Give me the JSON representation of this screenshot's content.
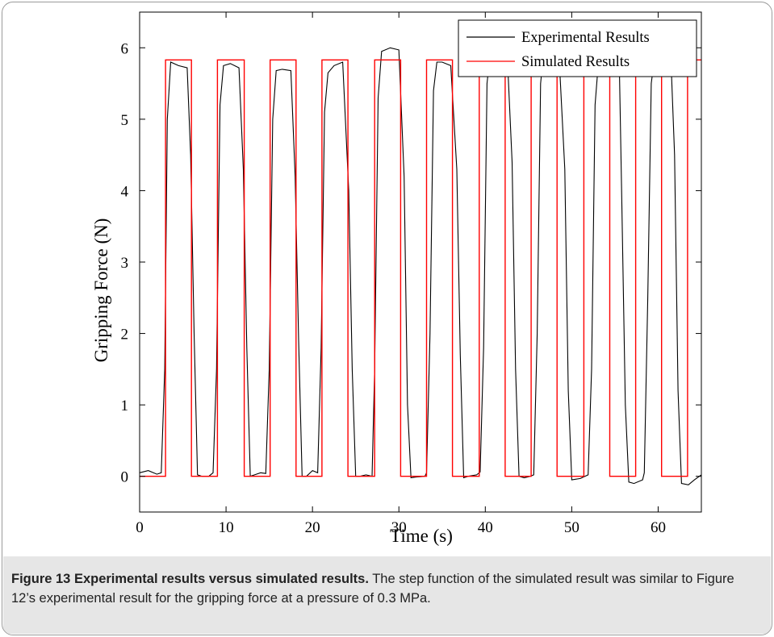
{
  "chart_data": {
    "type": "line",
    "xlabel": "Time (s)",
    "ylabel": "Gripping Force (N)",
    "xlim": [
      0,
      65
    ],
    "ylim": [
      -0.5,
      6.5
    ],
    "xticks": [
      0,
      10,
      20,
      30,
      40,
      50,
      60
    ],
    "yticks": [
      0,
      1,
      2,
      3,
      4,
      5,
      6
    ],
    "legend_position": "top-right",
    "series": [
      {
        "name": "Experimental Results",
        "color": "#000000",
        "x": [
          0,
          1,
          2,
          2.5,
          2.9,
          3.2,
          3.6,
          4.5,
          5.5,
          5.9,
          6.3,
          6.7,
          7.2,
          8,
          8.5,
          8.9,
          9.3,
          9.7,
          10.5,
          11.5,
          12,
          12.4,
          12.8,
          13.3,
          14,
          14.6,
          15,
          15.4,
          15.8,
          16.5,
          17.5,
          18,
          18.4,
          18.8,
          19.3,
          20,
          20.6,
          21,
          21.4,
          21.8,
          22.5,
          23.5,
          24.2,
          24.6,
          25,
          25.5,
          26.2,
          26.9,
          27.2,
          27.6,
          28,
          29,
          30,
          30.6,
          31.0,
          31.4,
          32,
          33,
          33.2,
          33.6,
          34,
          34.4,
          35,
          36,
          36.7,
          37.1,
          37.5,
          38,
          39,
          39.4,
          39.8,
          40.2,
          40.6,
          41.5,
          42.5,
          43.1,
          43.5,
          43.9,
          44.5,
          45.2,
          45.6,
          46.0,
          46.4,
          46.8,
          47.5,
          48.5,
          49.2,
          49.6,
          50,
          51,
          51.9,
          52.3,
          52.7,
          53.1,
          53.5,
          54.5,
          55.5,
          55.8,
          56.2,
          56.6,
          57.2,
          58.2,
          58.4,
          58.8,
          59.2,
          59.6,
          60.5,
          61.5,
          61.9,
          62.3,
          62.7,
          63.5,
          64.2,
          65
        ],
        "y": [
          0.05,
          0.08,
          0.03,
          0.05,
          1.5,
          5.0,
          5.8,
          5.75,
          5.72,
          4.5,
          2.0,
          0.02,
          0.0,
          0.0,
          0.05,
          1.5,
          5.2,
          5.75,
          5.78,
          5.72,
          4.3,
          1.8,
          0.0,
          0.02,
          0.05,
          0.04,
          1.5,
          5.0,
          5.68,
          5.7,
          5.68,
          4.2,
          1.9,
          0.0,
          0.0,
          0.08,
          0.05,
          1.8,
          5.1,
          5.65,
          5.75,
          5.8,
          4.0,
          1.5,
          0.0,
          0.0,
          0.02,
          0.0,
          1.5,
          5.3,
          5.95,
          6.0,
          5.97,
          4.2,
          1.0,
          -0.02,
          -0.01,
          0.0,
          0.05,
          2.0,
          5.4,
          5.8,
          5.8,
          5.75,
          4.3,
          1.7,
          -0.02,
          0.0,
          0.02,
          0.06,
          1.8,
          5.5,
          5.95,
          5.98,
          6.0,
          4.4,
          1.5,
          0.0,
          -0.02,
          0.0,
          0.02,
          2.0,
          5.5,
          6.0,
          6.0,
          5.97,
          4.3,
          1.2,
          -0.05,
          -0.03,
          0.02,
          1.5,
          5.2,
          5.82,
          5.86,
          5.88,
          5.8,
          3.8,
          1.0,
          -0.08,
          -0.1,
          -0.05,
          0.05,
          2.5,
          5.5,
          5.88,
          5.8,
          5.78,
          4.5,
          1.2,
          -0.1,
          -0.12,
          -0.05,
          0.02
        ]
      },
      {
        "name": "Simulated Results",
        "color": "#ff0000",
        "x": [
          0,
          3.0,
          3.0,
          6.0,
          6.0,
          9.0,
          9.0,
          12.1,
          12.1,
          15.1,
          15.1,
          18.1,
          18.1,
          21.1,
          21.1,
          24.1,
          24.1,
          27.2,
          27.2,
          30.2,
          30.2,
          33.2,
          33.2,
          36.2,
          36.2,
          39.3,
          39.3,
          42.3,
          42.3,
          45.3,
          45.3,
          48.3,
          48.3,
          51.4,
          51.4,
          54.4,
          54.4,
          57.4,
          57.4,
          60.4,
          60.4,
          63.4,
          63.4,
          65
        ],
        "y": [
          0,
          0,
          5.83,
          5.83,
          0,
          0,
          5.83,
          5.83,
          0,
          0,
          5.83,
          5.83,
          0,
          0,
          5.83,
          5.83,
          0,
          0,
          5.83,
          5.83,
          0,
          0,
          5.83,
          5.83,
          0,
          0,
          5.83,
          5.83,
          0,
          0,
          5.83,
          5.83,
          0,
          0,
          5.83,
          5.83,
          0,
          0,
          5.83,
          5.83,
          0,
          0,
          5.83,
          5.83
        ]
      }
    ]
  },
  "caption": {
    "label": "Figure 13 Experimental results versus simulated results.",
    "text": " The step function of the simulated result was similar to Figure 12’s experimental result for the gripping force at a pressure of 0.3 MPa."
  }
}
